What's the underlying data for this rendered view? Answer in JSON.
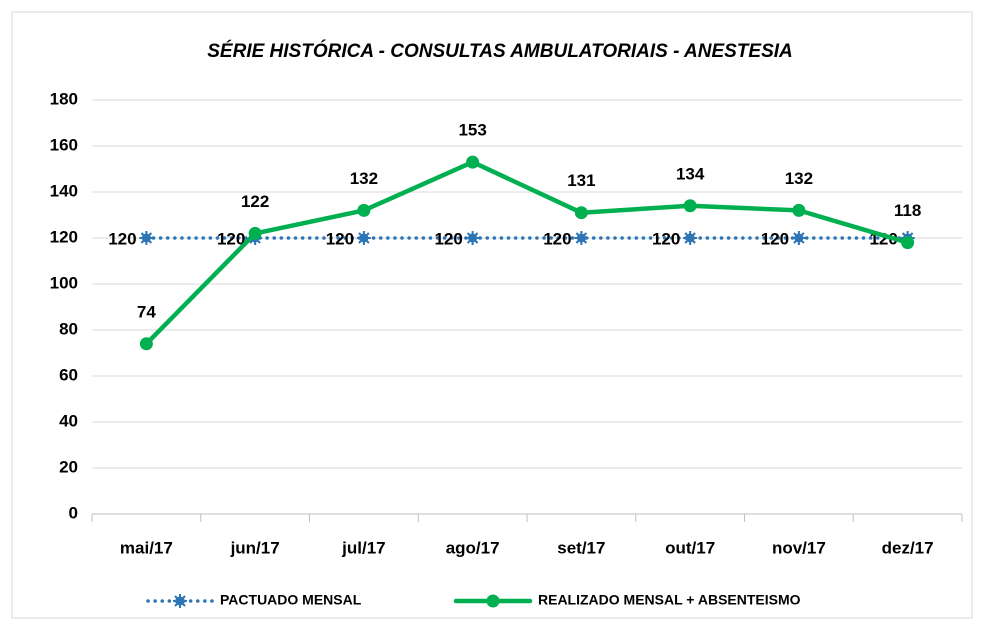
{
  "chart_data": {
    "type": "line",
    "title": "SÉRIE HISTÓRICA - CONSULTAS AMBULATORIAIS - ANESTESIA",
    "categories": [
      "mai/17",
      "jun/17",
      "jul/17",
      "ago/17",
      "set/17",
      "out/17",
      "nov/17",
      "dez/17"
    ],
    "series": [
      {
        "name": "PACTUADO MENSAL",
        "color": "#2e75b6",
        "values": [
          120,
          120,
          120,
          120,
          120,
          120,
          120,
          120
        ]
      },
      {
        "name": "REALIZADO MENSAL + ABSENTEISMO",
        "color": "#00b050",
        "values": [
          74,
          122,
          132,
          153,
          131,
          134,
          132,
          118
        ]
      }
    ],
    "ylim": [
      0,
      180
    ],
    "yticks": [
      0,
      20,
      40,
      60,
      80,
      100,
      120,
      140,
      160,
      180
    ],
    "grid": true,
    "legend": "bottom"
  }
}
